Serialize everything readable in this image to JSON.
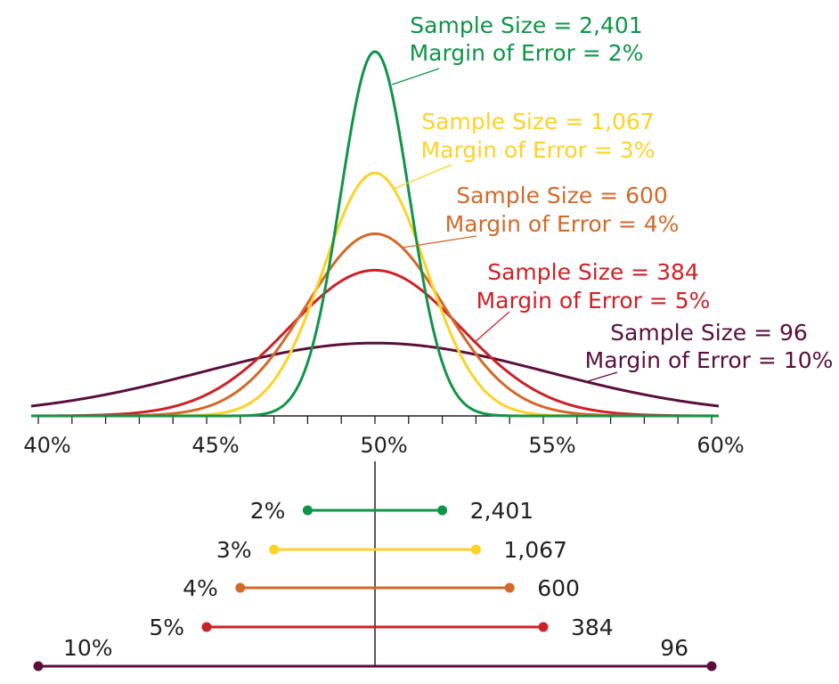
{
  "chart_data": {
    "type": "line",
    "title": "",
    "xlabel": "",
    "ylabel": "",
    "xlim": [
      40,
      60
    ],
    "x_ticks": [
      "40%",
      "45%",
      "50%",
      "55%",
      "60%"
    ],
    "x_tick_values": [
      40,
      45,
      50,
      55,
      60
    ],
    "minor_tick_step": 1,
    "center": 50,
    "grid": false,
    "series": [
      {
        "sample_size": 2401,
        "moe": 2,
        "color": "#0f9448",
        "label1": "Sample Size = 2,401",
        "label2": "Margin of Error = 2%",
        "left_label": "2%",
        "right_label": "2,401"
      },
      {
        "sample_size": 1067,
        "moe": 3,
        "color": "#fdd226",
        "label1": "Sample Size = 1,067",
        "label2": "Margin of Error = 3%",
        "left_label": "3%",
        "right_label": "1,067"
      },
      {
        "sample_size": 600,
        "moe": 4,
        "color": "#d2692a",
        "label1": "Sample Size = 600",
        "label2": "Margin of Error = 4%",
        "left_label": "4%",
        "right_label": "600"
      },
      {
        "sample_size": 384,
        "moe": 5,
        "color": "#cc2128",
        "label1": "Sample Size = 384",
        "label2": "Margin of Error = 5%",
        "left_label": "5%",
        "right_label": "384"
      },
      {
        "sample_size": 96,
        "moe": 10,
        "color": "#5a0f3b",
        "label1": "Sample Size = 96",
        "label2": "Margin of Error = 10%",
        "left_label": "10%",
        "right_label": "96"
      }
    ]
  }
}
